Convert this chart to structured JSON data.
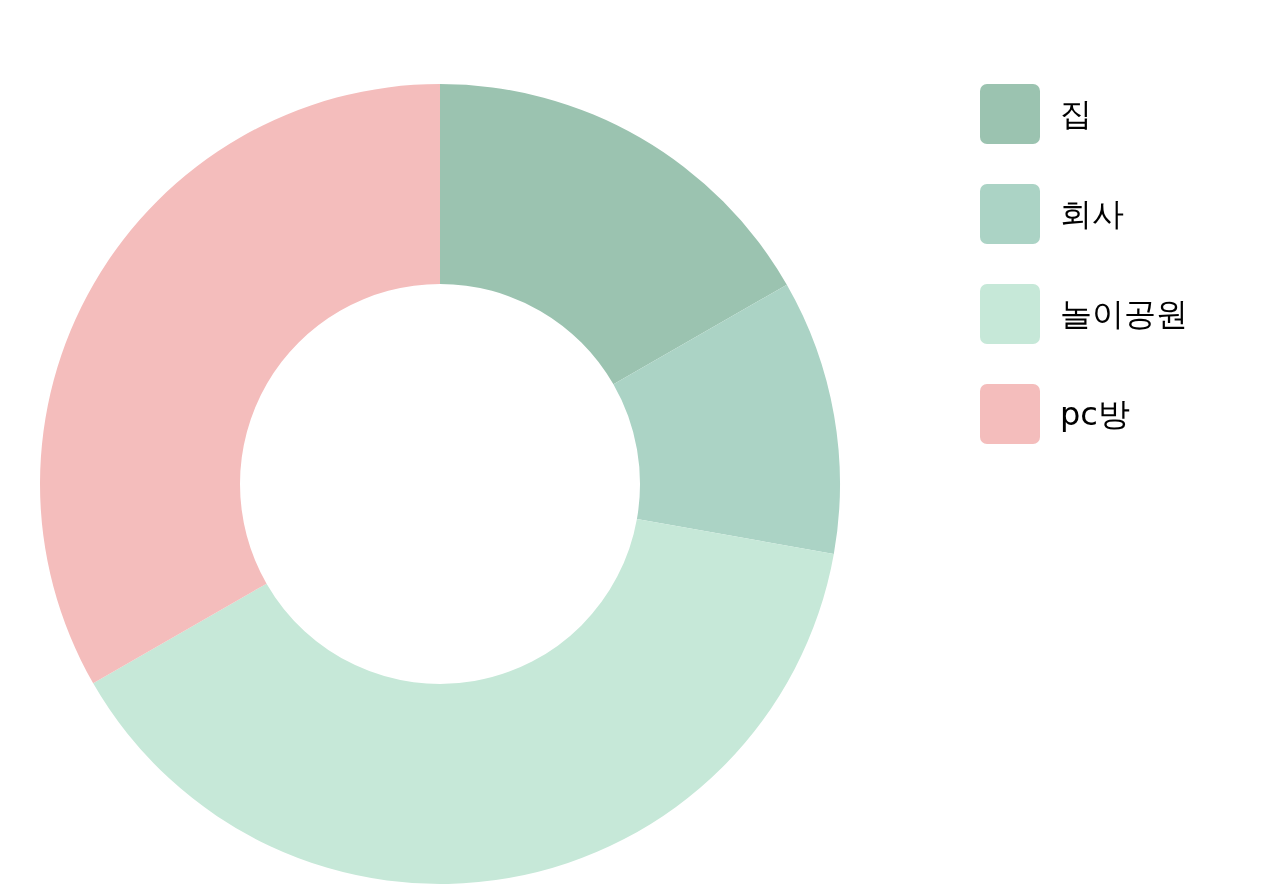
{
  "chart_data": {
    "type": "donut",
    "categories": [
      "집",
      "회사",
      "놀이공원",
      "pc방"
    ],
    "values": [
      16.7,
      11.1,
      38.9,
      33.3
    ],
    "colors": [
      "#9bc3b0",
      "#abd3c5",
      "#c6e8d8",
      "#f4bdbc"
    ],
    "legend": "top right"
  }
}
